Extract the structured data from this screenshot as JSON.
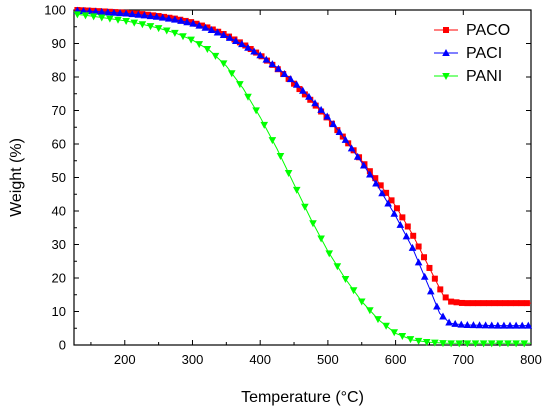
{
  "chart_data": {
    "type": "line",
    "title": "",
    "xlabel": "Temperature (°C)",
    "ylabel": "Weight (%)",
    "xlim": [
      125,
      800
    ],
    "ylim": [
      0,
      100
    ],
    "xticks": [
      200,
      300,
      400,
      500,
      600,
      700,
      800
    ],
    "yticks": [
      0,
      10,
      20,
      30,
      40,
      50,
      60,
      70,
      80,
      90,
      100
    ],
    "grid": false,
    "legend_position": "top-right",
    "series": [
      {
        "name": "PACO",
        "color": "#ff0000",
        "marker": "square",
        "points": [
          [
            130,
            100
          ],
          [
            150,
            99.8
          ],
          [
            175,
            99.5
          ],
          [
            200,
            99.2
          ],
          [
            225,
            98.8
          ],
          [
            250,
            98.2
          ],
          [
            275,
            97.4
          ],
          [
            300,
            96.3
          ],
          [
            325,
            94.6
          ],
          [
            350,
            92.5
          ],
          [
            375,
            89.8
          ],
          [
            400,
            86.5
          ],
          [
            425,
            82.5
          ],
          [
            450,
            78
          ],
          [
            475,
            73
          ],
          [
            500,
            67.5
          ],
          [
            525,
            61.5
          ],
          [
            550,
            55
          ],
          [
            575,
            48.5
          ],
          [
            600,
            41.5
          ],
          [
            625,
            33
          ],
          [
            650,
            23
          ],
          [
            670,
            15
          ],
          [
            680,
            13
          ],
          [
            700,
            12.5
          ],
          [
            750,
            12.5
          ],
          [
            800,
            12.5
          ]
        ]
      },
      {
        "name": "PACI",
        "color": "#0000ff",
        "marker": "triangle-up",
        "points": [
          [
            130,
            99.8
          ],
          [
            150,
            99.6
          ],
          [
            175,
            99.3
          ],
          [
            200,
            99
          ],
          [
            225,
            98.5
          ],
          [
            250,
            97.9
          ],
          [
            275,
            97.1
          ],
          [
            300,
            96
          ],
          [
            325,
            94.3
          ],
          [
            350,
            92.2
          ],
          [
            375,
            89.6
          ],
          [
            400,
            86.5
          ],
          [
            425,
            82.8
          ],
          [
            450,
            78.5
          ],
          [
            475,
            73.5
          ],
          [
            500,
            68
          ],
          [
            525,
            61.5
          ],
          [
            550,
            54.5
          ],
          [
            575,
            47
          ],
          [
            600,
            38.5
          ],
          [
            625,
            29
          ],
          [
            650,
            17
          ],
          [
            665,
            9.5
          ],
          [
            680,
            6.5
          ],
          [
            700,
            6
          ],
          [
            750,
            5.8
          ],
          [
            800,
            5.8
          ]
        ]
      },
      {
        "name": "PANI",
        "color": "#00ff00",
        "marker": "triangle-down",
        "points": [
          [
            130,
            98.7
          ],
          [
            150,
            98.2
          ],
          [
            175,
            97.5
          ],
          [
            200,
            96.8
          ],
          [
            225,
            95.8
          ],
          [
            250,
            94.6
          ],
          [
            275,
            93.1
          ],
          [
            300,
            91
          ],
          [
            325,
            88
          ],
          [
            350,
            83.3
          ],
          [
            375,
            76.5
          ],
          [
            400,
            68
          ],
          [
            425,
            58.5
          ],
          [
            450,
            48
          ],
          [
            475,
            37.5
          ],
          [
            500,
            28
          ],
          [
            525,
            20
          ],
          [
            550,
            13
          ],
          [
            575,
            7.5
          ],
          [
            600,
            3.5
          ],
          [
            625,
            1.5
          ],
          [
            650,
            0.8
          ],
          [
            675,
            0.5
          ],
          [
            700,
            0.5
          ],
          [
            750,
            0.5
          ],
          [
            800,
            0.5
          ]
        ]
      }
    ]
  }
}
